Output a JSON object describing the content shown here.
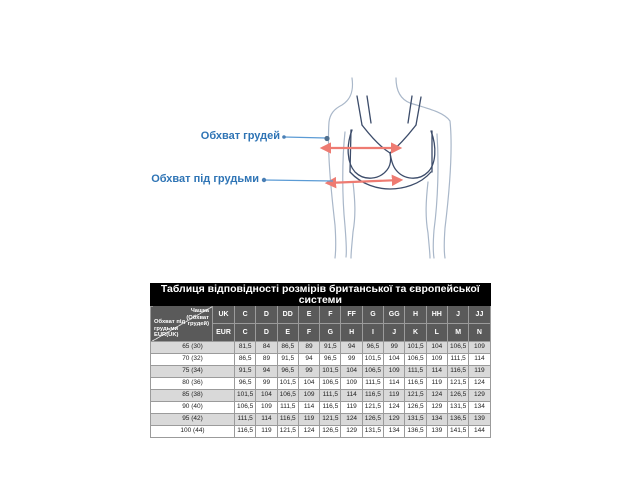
{
  "diagram": {
    "label_bust": "Обхват грудей",
    "label_underbust": "Обхват під грудьми",
    "icons": [
      "bust-measure-arrow",
      "underbust-measure-arrow",
      "bust-callout-line",
      "underbust-callout-line"
    ],
    "colors": {
      "label_text": "#2e74b5",
      "callout_line": "#5b9bd5",
      "measure_arrow": "#ee7b72",
      "body_outline": "#a9b7c9",
      "bra_outline": "#3c4c6a"
    }
  },
  "table": {
    "title": "Таблиця відповідності розмірів британської та європейської системи",
    "corner": {
      "top": "Чашка (Обхват грудей)",
      "bottom": "Обхват під грудьми EUR(UK)"
    },
    "uk_label": "UK",
    "eur_label": "EUR",
    "uk_cups": [
      "C",
      "D",
      "DD",
      "E",
      "F",
      "FF",
      "G",
      "GG",
      "H",
      "HH",
      "J",
      "JJ"
    ],
    "eur_cups": [
      "C",
      "D",
      "E",
      "F",
      "G",
      "H",
      "I",
      "J",
      "K",
      "L",
      "M",
      "N"
    ],
    "rows": [
      {
        "band": "65 (30)",
        "values": [
          "81,5",
          "84",
          "86,5",
          "89",
          "91,5",
          "94",
          "96,5",
          "99",
          "101,5",
          "104",
          "106,5",
          "109"
        ]
      },
      {
        "band": "70 (32)",
        "values": [
          "86,5",
          "89",
          "91,5",
          "94",
          "96,5",
          "99",
          "101,5",
          "104",
          "106,5",
          "109",
          "111,5",
          "114"
        ]
      },
      {
        "band": "75 (34)",
        "values": [
          "91,5",
          "94",
          "96,5",
          "99",
          "101,5",
          "104",
          "106,5",
          "109",
          "111,5",
          "114",
          "116,5",
          "119"
        ]
      },
      {
        "band": "80 (36)",
        "values": [
          "96,5",
          "99",
          "101,5",
          "104",
          "106,5",
          "109",
          "111,5",
          "114",
          "116,5",
          "119",
          "121,5",
          "124"
        ]
      },
      {
        "band": "85 (38)",
        "values": [
          "101,5",
          "104",
          "106,5",
          "109",
          "111,5",
          "114",
          "116,5",
          "119",
          "121,5",
          "124",
          "126,5",
          "129"
        ]
      },
      {
        "band": "90 (40)",
        "values": [
          "106,5",
          "109",
          "111,5",
          "114",
          "116,5",
          "119",
          "121,5",
          "124",
          "126,5",
          "129",
          "131,5",
          "134"
        ]
      },
      {
        "band": "95 (42)",
        "values": [
          "111,5",
          "114",
          "116,5",
          "119",
          "121,5",
          "124",
          "126,5",
          "129",
          "131,5",
          "134",
          "136,5",
          "139"
        ]
      },
      {
        "band": "100 (44)",
        "values": [
          "116,5",
          "119",
          "121,5",
          "124",
          "126,5",
          "129",
          "131,5",
          "134",
          "136,5",
          "139",
          "141,5",
          "144"
        ]
      }
    ]
  }
}
